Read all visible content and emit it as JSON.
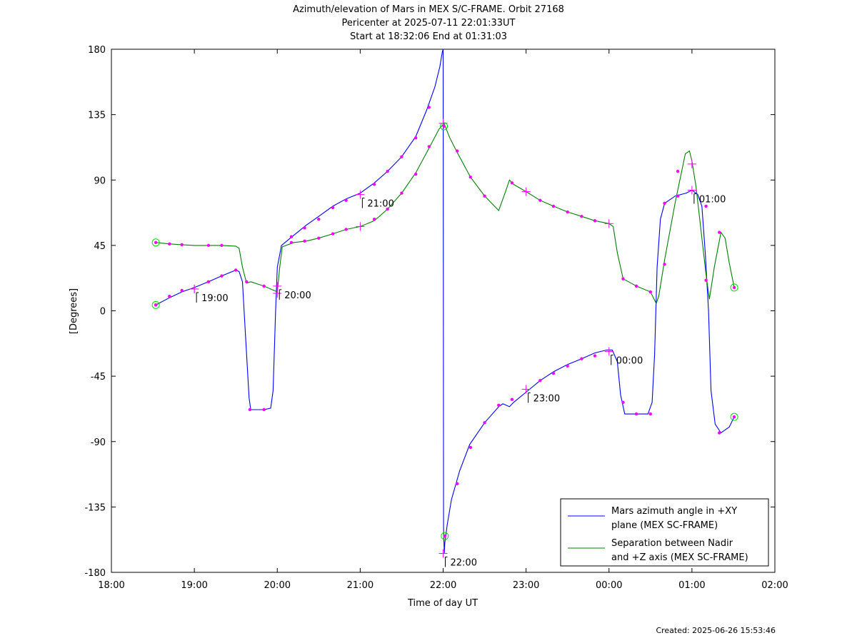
{
  "chart_data": {
    "type": "line",
    "title": "Azimuth/elevation of Mars in MEX S/C-FRAME.  Orbit 27168",
    "subtitle_1": "Pericenter at 2025-07-11 22:01:33UT",
    "subtitle_2": "Start at 18:32:06 End at 01:31:03",
    "xlabel": "Time of day UT",
    "ylabel": "[Degrees]",
    "xlim": [
      0,
      8
    ],
    "ylim": [
      -180,
      180
    ],
    "x_ticks": [
      0,
      1,
      2,
      3,
      4,
      5,
      6,
      7,
      8
    ],
    "x_tick_labels": [
      "18:00",
      "19:00",
      "20:00",
      "21:00",
      "22:00",
      "23:00",
      "00:00",
      "01:00",
      "02:00"
    ],
    "y_ticks": [
      -180,
      -135,
      -90,
      -45,
      0,
      45,
      90,
      135,
      180
    ],
    "y_tick_labels": [
      "-180",
      "-135",
      "-90",
      "-45",
      "0",
      "45",
      "90",
      "135",
      "180"
    ],
    "hour_annotations": [
      {
        "x": 1.0,
        "y": 15,
        "label": "19:00"
      },
      {
        "x": 2.0,
        "y": 17,
        "label": "20:00"
      },
      {
        "x": 3.0,
        "y": 80,
        "label": "21:00"
      },
      {
        "x": 4.0,
        "y": -167,
        "label": "22:00"
      },
      {
        "x": 5.0,
        "y": -54,
        "label": "23:00"
      },
      {
        "x": 6.0,
        "y": -28,
        "label": "00:00"
      },
      {
        "x": 7.0,
        "y": 83,
        "label": "01:00"
      }
    ],
    "series": [
      {
        "name": "Mars azimuth angle in +XY plane (MEX SC-FRAME)",
        "name_line1": "Mars azimuth angle in +XY",
        "name_line2": "plane (MEX SC-FRAME)",
        "color": "#0000ff",
        "points": [
          [
            0.535,
            4
          ],
          [
            0.7,
            9
          ],
          [
            0.85,
            13
          ],
          [
            1.0,
            16
          ],
          [
            1.17,
            20
          ],
          [
            1.33,
            24
          ],
          [
            1.5,
            28
          ],
          [
            1.54,
            27
          ],
          [
            1.58,
            20
          ],
          [
            1.62,
            -20
          ],
          [
            1.66,
            -60
          ],
          [
            1.68,
            -68
          ],
          [
            1.75,
            -68
          ],
          [
            1.84,
            -68
          ],
          [
            1.92,
            -67
          ],
          [
            1.95,
            -55
          ],
          [
            1.98,
            0
          ],
          [
            2.0,
            30
          ],
          [
            2.05,
            45
          ],
          [
            2.2,
            52
          ],
          [
            2.35,
            59
          ],
          [
            2.5,
            65
          ],
          [
            2.67,
            72
          ],
          [
            2.83,
            77
          ],
          [
            3.0,
            81
          ],
          [
            3.17,
            88
          ],
          [
            3.33,
            96
          ],
          [
            3.5,
            106
          ],
          [
            3.67,
            120
          ],
          [
            3.8,
            138
          ],
          [
            3.9,
            154
          ],
          [
            3.96,
            168
          ],
          [
            3.99,
            178
          ],
          [
            4.0,
            180
          ],
          [
            4.005,
            -150
          ],
          [
            4.01,
            -160
          ],
          [
            4.015,
            -167
          ],
          [
            4.02,
            -160
          ],
          [
            4.05,
            -147
          ],
          [
            4.1,
            -130
          ],
          [
            4.2,
            -110
          ],
          [
            4.32,
            -92
          ],
          [
            4.5,
            -77
          ],
          [
            4.67,
            -66
          ],
          [
            4.72,
            -64
          ],
          [
            4.8,
            -66
          ],
          [
            4.85,
            -63
          ],
          [
            5.0,
            -56
          ],
          [
            5.17,
            -48
          ],
          [
            5.33,
            -42
          ],
          [
            5.5,
            -37
          ],
          [
            5.67,
            -33
          ],
          [
            5.83,
            -29
          ],
          [
            5.97,
            -27
          ],
          [
            6.04,
            -27
          ],
          [
            6.1,
            -35
          ],
          [
            6.14,
            -58
          ],
          [
            6.19,
            -71
          ],
          [
            6.35,
            -71
          ],
          [
            6.47,
            -71
          ],
          [
            6.52,
            -63
          ],
          [
            6.55,
            -30
          ],
          [
            6.58,
            30
          ],
          [
            6.62,
            63
          ],
          [
            6.67,
            74
          ],
          [
            6.8,
            79
          ],
          [
            6.93,
            81
          ],
          [
            7.0,
            83
          ],
          [
            7.07,
            80
          ],
          [
            7.12,
            72
          ],
          [
            7.16,
            40
          ],
          [
            7.2,
            0
          ],
          [
            7.23,
            -55
          ],
          [
            7.28,
            -78
          ],
          [
            7.35,
            -84
          ],
          [
            7.45,
            -80
          ],
          [
            7.51,
            -73
          ]
        ]
      },
      {
        "name": "Separation between Nadir and +Z axis (MEX SC-FRAME)",
        "name_line1": "Separation between Nadir",
        "name_line2": "and +Z axis (MEX SC-FRAME)",
        "color": "#008000",
        "points": [
          [
            0.535,
            47
          ],
          [
            0.7,
            46
          ],
          [
            0.85,
            45.5
          ],
          [
            1.0,
            45
          ],
          [
            1.17,
            45
          ],
          [
            1.33,
            45
          ],
          [
            1.5,
            44.5
          ],
          [
            1.54,
            43
          ],
          [
            1.58,
            30
          ],
          [
            1.63,
            19
          ],
          [
            1.68,
            20
          ],
          [
            1.84,
            17
          ],
          [
            1.92,
            15
          ],
          [
            2.0,
            13
          ],
          [
            2.03,
            30
          ],
          [
            2.06,
            44
          ],
          [
            2.2,
            47
          ],
          [
            2.35,
            48
          ],
          [
            2.5,
            50
          ],
          [
            2.67,
            53
          ],
          [
            2.83,
            56
          ],
          [
            3.0,
            58
          ],
          [
            3.17,
            62
          ],
          [
            3.33,
            70
          ],
          [
            3.5,
            81
          ],
          [
            3.67,
            95
          ],
          [
            3.83,
            112
          ],
          [
            3.95,
            125
          ],
          [
            4.01,
            129
          ],
          [
            4.08,
            119
          ],
          [
            4.17,
            109
          ],
          [
            4.33,
            92
          ],
          [
            4.5,
            79
          ],
          [
            4.67,
            69
          ],
          [
            4.74,
            80
          ],
          [
            4.8,
            90
          ],
          [
            4.85,
            87
          ],
          [
            5.0,
            82
          ],
          [
            5.17,
            76
          ],
          [
            5.33,
            72
          ],
          [
            5.5,
            68
          ],
          [
            5.67,
            65
          ],
          [
            5.83,
            62
          ],
          [
            6.0,
            60
          ],
          [
            6.05,
            58
          ],
          [
            6.1,
            40
          ],
          [
            6.17,
            22
          ],
          [
            6.33,
            17
          ],
          [
            6.5,
            13
          ],
          [
            6.57,
            5
          ],
          [
            6.6,
            10
          ],
          [
            6.67,
            35
          ],
          [
            6.8,
            75
          ],
          [
            6.92,
            108
          ],
          [
            6.97,
            110
          ],
          [
            7.0,
            103
          ],
          [
            7.05,
            85
          ],
          [
            7.12,
            50
          ],
          [
            7.17,
            25
          ],
          [
            7.21,
            8
          ],
          [
            7.27,
            30
          ],
          [
            7.35,
            54
          ],
          [
            7.4,
            50
          ],
          [
            7.45,
            33
          ],
          [
            7.51,
            16
          ]
        ]
      }
    ],
    "azimuth_markers": [
      [
        0.535,
        4
      ],
      [
        0.7,
        10
      ],
      [
        0.85,
        14
      ],
      [
        1.17,
        20
      ],
      [
        1.33,
        24
      ],
      [
        1.5,
        28
      ],
      [
        1.67,
        -68
      ],
      [
        1.84,
        -68
      ],
      [
        2.17,
        51
      ],
      [
        2.33,
        57
      ],
      [
        2.5,
        63
      ],
      [
        2.67,
        71
      ],
      [
        2.83,
        76
      ],
      [
        3.17,
        87
      ],
      [
        3.33,
        96
      ],
      [
        3.5,
        106
      ],
      [
        3.67,
        119
      ],
      [
        3.83,
        140
      ],
      [
        4.33,
        -94
      ],
      [
        4.17,
        -119
      ],
      [
        4.5,
        -77
      ],
      [
        4.67,
        -65
      ],
      [
        4.83,
        -61
      ],
      [
        5.17,
        -48
      ],
      [
        5.33,
        -43
      ],
      [
        5.5,
        -38
      ],
      [
        5.67,
        -33
      ],
      [
        5.83,
        -31
      ],
      [
        6.17,
        -63
      ],
      [
        6.33,
        -71
      ],
      [
        6.5,
        -71
      ],
      [
        6.67,
        74
      ],
      [
        6.83,
        79
      ],
      [
        7.17,
        72
      ],
      [
        7.33,
        -84
      ]
    ],
    "separation_markers": [
      [
        0.7,
        46
      ],
      [
        0.85,
        45.5
      ],
      [
        1.17,
        45
      ],
      [
        1.33,
        45
      ],
      [
        1.63,
        20
      ],
      [
        1.84,
        17
      ],
      [
        2.17,
        47
      ],
      [
        2.33,
        48
      ],
      [
        2.5,
        50
      ],
      [
        2.67,
        53
      ],
      [
        2.83,
        56
      ],
      [
        3.17,
        63
      ],
      [
        3.33,
        70
      ],
      [
        3.5,
        81
      ],
      [
        3.67,
        94
      ],
      [
        3.83,
        113
      ],
      [
        4.17,
        110
      ],
      [
        4.33,
        92
      ],
      [
        4.5,
        79
      ],
      [
        4.83,
        88
      ],
      [
        5.17,
        76
      ],
      [
        5.33,
        72
      ],
      [
        5.5,
        68
      ],
      [
        5.67,
        65
      ],
      [
        5.83,
        62
      ],
      [
        6.17,
        22
      ],
      [
        6.33,
        17
      ],
      [
        6.5,
        13
      ],
      [
        6.67,
        32
      ],
      [
        6.83,
        96
      ],
      [
        7.17,
        21
      ],
      [
        7.33,
        54
      ]
    ],
    "crosshair_markers": [
      [
        1.0,
        15
      ],
      [
        1.0,
        15
      ],
      [
        2.0,
        17
      ],
      [
        2.0,
        12
      ],
      [
        3.0,
        80
      ],
      [
        3.0,
        58
      ],
      [
        4.0,
        -167
      ],
      [
        4.0,
        129
      ],
      [
        5.0,
        -54
      ],
      [
        5.0,
        82
      ],
      [
        6.0,
        -28
      ],
      [
        6.0,
        60
      ],
      [
        7.0,
        83
      ],
      [
        7.0,
        101
      ]
    ],
    "start_end_circles": [
      [
        0.535,
        4
      ],
      [
        0.535,
        47
      ],
      [
        4.02,
        -155
      ],
      [
        4.01,
        127
      ],
      [
        7.51,
        -73
      ],
      [
        7.51,
        16
      ]
    ],
    "legend": {
      "position": "bottom-right"
    },
    "grid": false
  },
  "footer": {
    "created": "Created: 2025-06-26 15:53:46"
  }
}
